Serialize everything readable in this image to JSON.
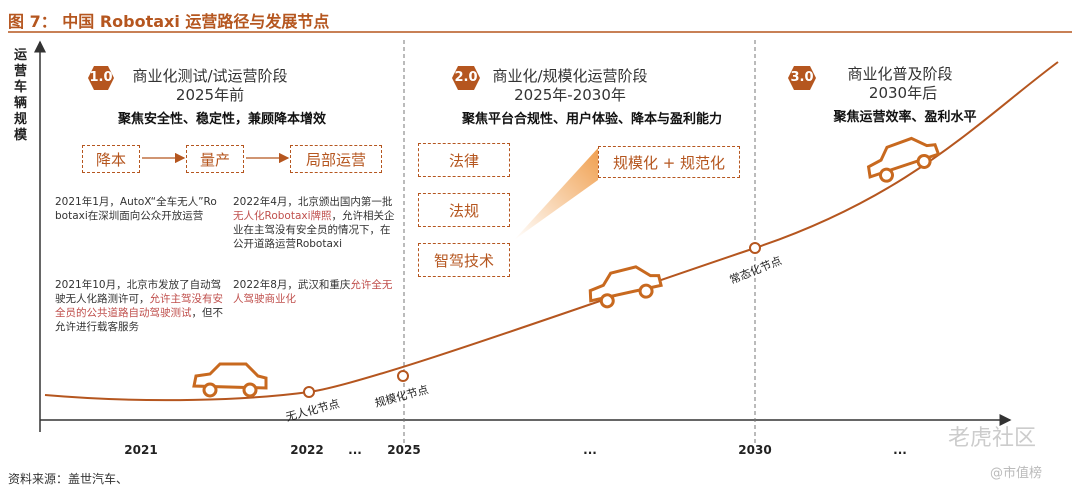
{
  "title": "图 7：  中国 Robotaxi 运营路径与发展节点",
  "y_axis_label": "运营车辆规模",
  "x_axis_labels": [
    "2021",
    "2022",
    "...",
    "2025",
    "...",
    "2030",
    "..."
  ],
  "stages": [
    {
      "badge": "1.0",
      "name": "商业化测试/试运营阶段",
      "period": "2025年前",
      "focus": "聚焦安全性、稳定性，兼顾降本增效"
    },
    {
      "badge": "2.0",
      "name": "商业化/规模化运营阶段",
      "period": "2025年-2030年",
      "focus": "聚焦平台合规性、用户体验、降本与盈利能力"
    },
    {
      "badge": "3.0",
      "name": "商业化普及阶段",
      "period": "2030年后",
      "focus": "聚焦运营效率、盈利水平"
    }
  ],
  "stage1_flow": [
    "降本",
    "量产",
    "局部运营"
  ],
  "stage2_factors": [
    "法律",
    "法规",
    "智驾技术"
  ],
  "stage2_goal": "规模化 + 规范化",
  "nodes": [
    "无人化节点",
    "规模化节点",
    "常态化节点"
  ],
  "notes": [
    {
      "parts": [
        "2021年1月，AutoX“全车无人”Robotaxi在深圳面向公众开放运营"
      ]
    },
    {
      "parts": [
        "2021年10月，北京市发放了自动驾驶无人化路测许可，",
        "允许主驾没有安全员的公共道路自动驾驶测试",
        "，但不允许进行载客服务"
      ]
    },
    {
      "parts": [
        "2022年4月，北京颁出国内第一批",
        "无人化Robotaxi牌照",
        "，允许相关企业在主驾没有安全员的情况下，在公开道路运营Robotaxi"
      ]
    },
    {
      "parts": [
        "2022年8月，武汉和重庆",
        "允许全无人驾驶商业化"
      ]
    }
  ],
  "source": "资料来源：盖世汽车、",
  "watermarks": [
    "老虎社区",
    "@市值榜"
  ]
}
